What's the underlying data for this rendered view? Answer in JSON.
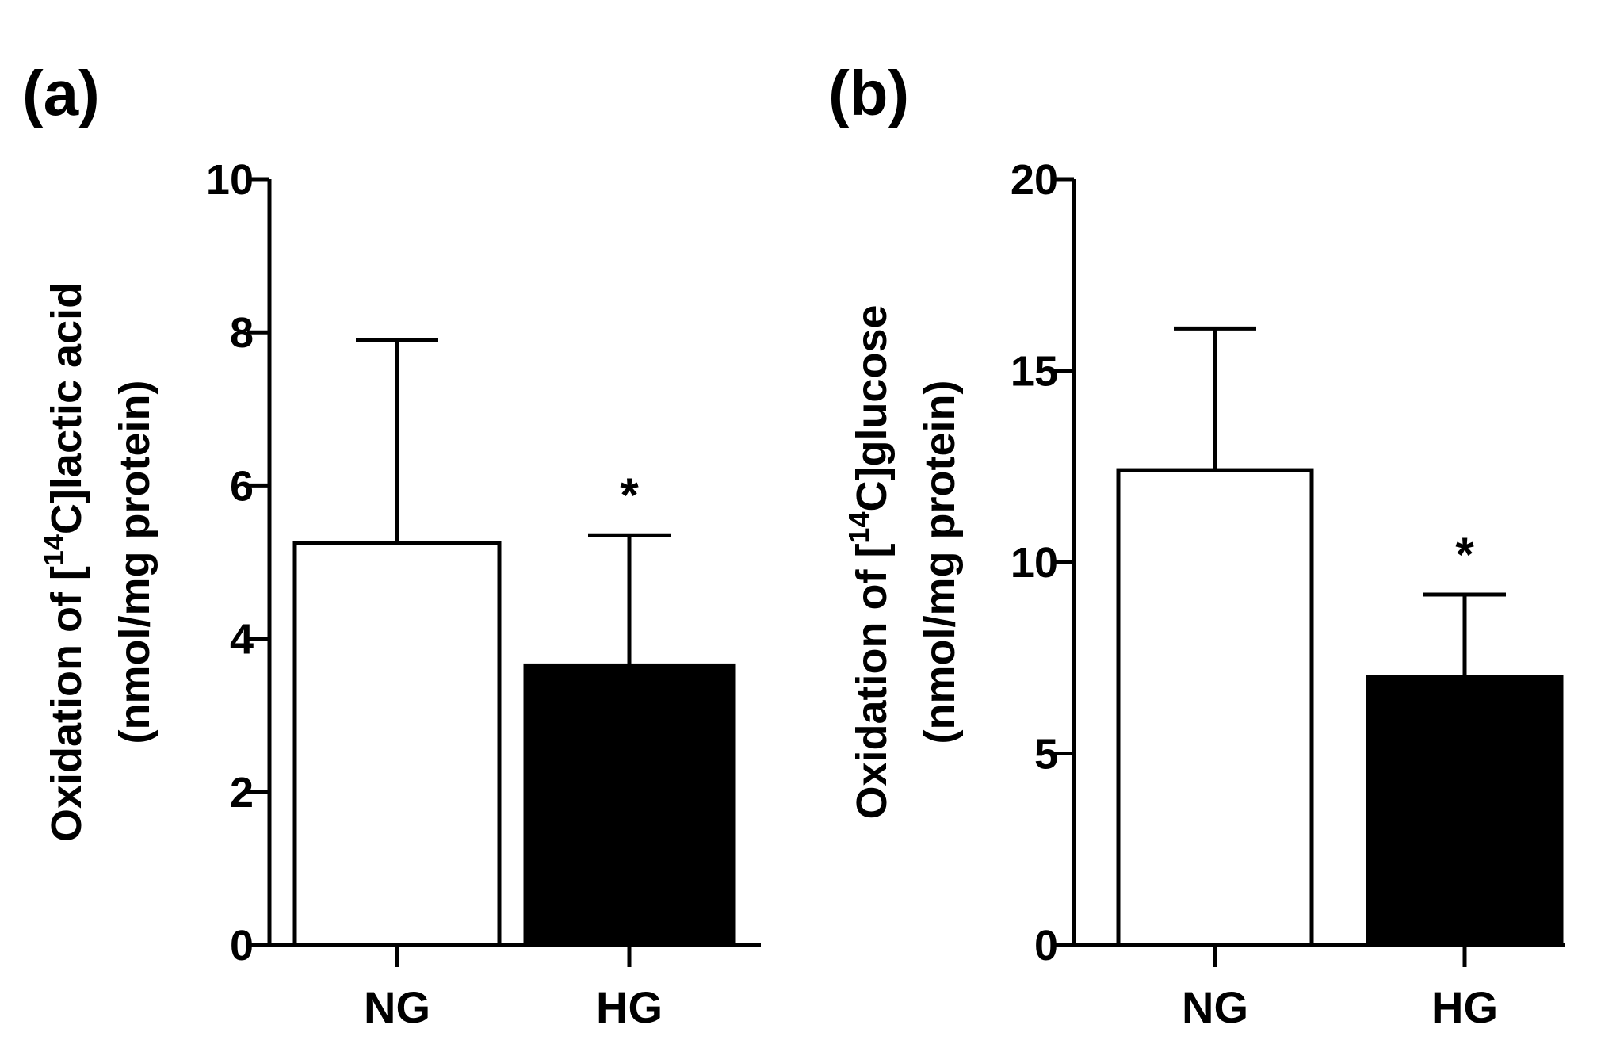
{
  "chart_data": [
    {
      "panel": "(a)",
      "type": "bar",
      "categories": [
        "NG",
        "HG"
      ],
      "values": [
        5.25,
        3.65
      ],
      "error_upper": [
        7.9,
        5.35
      ],
      "fills": [
        "#ffffff",
        "#000000"
      ],
      "significance": [
        "",
        "*"
      ],
      "ylim": [
        0,
        10
      ],
      "yticks": [
        0,
        2,
        4,
        6,
        8,
        10
      ],
      "ylabel": {
        "line1_prefix": "Oxidation of [",
        "line1_sup": "14",
        "line1_suffix": "C]lactic acid",
        "line2": "(nmol/mg protein)"
      },
      "xlabel": ""
    },
    {
      "panel": "(b)",
      "type": "bar",
      "categories": [
        "NG",
        "HG"
      ],
      "values": [
        12.4,
        7.0
      ],
      "error_upper": [
        16.1,
        9.15
      ],
      "fills": [
        "#ffffff",
        "#000000"
      ],
      "significance": [
        "",
        "*"
      ],
      "ylim": [
        0,
        20
      ],
      "yticks": [
        0,
        5,
        10,
        15,
        20
      ],
      "ylabel": {
        "line1_prefix": "Oxidation of [",
        "line1_sup": "14",
        "line1_suffix": "C]glucose",
        "line2": "(nmol/mg protein)"
      },
      "xlabel": ""
    }
  ]
}
